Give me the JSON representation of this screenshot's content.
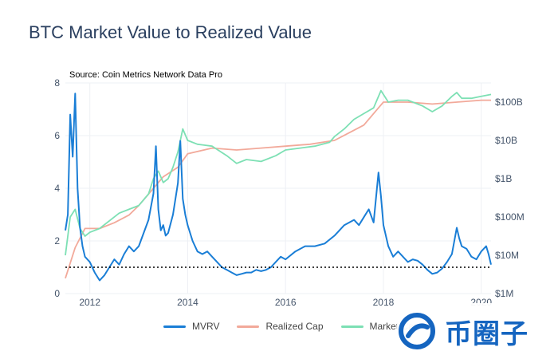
{
  "chart_data": {
    "type": "line",
    "title": "BTC Market Value to Realized Value",
    "subtitle": "Source: Coin Metrics Network Data Pro",
    "x_ticks": [
      "2012",
      "2014",
      "2016",
      "2018",
      "2020"
    ],
    "y_left_ticks": [
      "0",
      "2",
      "4",
      "6",
      "8"
    ],
    "y_left_range": [
      0,
      8
    ],
    "y_right_ticks": [
      "$1M",
      "$10M",
      "$100M",
      "$1B",
      "$10B",
      "$100B"
    ],
    "y_right_range_log10": [
      6,
      11.5
    ],
    "x_range": [
      2011.5,
      2020.2
    ],
    "reference_line": {
      "value": 1,
      "style": "dotted"
    },
    "legend": [
      "MVRV",
      "Realized Cap",
      "Market Cap"
    ],
    "colors": {
      "mvrv": "#1a7ed6",
      "realized": "#f2a99a",
      "market": "#7de0b4"
    },
    "series": [
      {
        "name": "MVRV",
        "axis": "left",
        "x": [
          2011.5,
          2011.55,
          2011.6,
          2011.65,
          2011.7,
          2011.75,
          2011.8,
          2011.85,
          2011.9,
          2012.0,
          2012.1,
          2012.2,
          2012.3,
          2012.4,
          2012.5,
          2012.6,
          2012.7,
          2012.8,
          2012.9,
          2013.0,
          2013.1,
          2013.2,
          2013.3,
          2013.35,
          2013.4,
          2013.45,
          2013.5,
          2013.55,
          2013.6,
          2013.7,
          2013.8,
          2013.85,
          2013.9,
          2013.95,
          2014.0,
          2014.1,
          2014.2,
          2014.3,
          2014.4,
          2014.5,
          2014.6,
          2014.7,
          2014.8,
          2014.9,
          2015.0,
          2015.1,
          2015.2,
          2015.3,
          2015.4,
          2015.5,
          2015.6,
          2015.7,
          2015.8,
          2015.9,
          2016.0,
          2016.2,
          2016.4,
          2016.6,
          2016.8,
          2017.0,
          2017.2,
          2017.4,
          2017.5,
          2017.6,
          2017.7,
          2017.8,
          2017.9,
          2017.95,
          2018.0,
          2018.1,
          2018.2,
          2018.3,
          2018.4,
          2018.5,
          2018.6,
          2018.7,
          2018.8,
          2018.9,
          2019.0,
          2019.1,
          2019.2,
          2019.3,
          2019.4,
          2019.5,
          2019.55,
          2019.6,
          2019.7,
          2019.8,
          2019.9,
          2020.0,
          2020.1,
          2020.15,
          2020.2
        ],
        "values": [
          2.4,
          3.0,
          6.8,
          5.2,
          7.6,
          4.0,
          2.5,
          1.8,
          1.4,
          1.2,
          0.8,
          0.5,
          0.7,
          1.0,
          1.3,
          1.1,
          1.5,
          1.8,
          1.6,
          1.8,
          2.3,
          2.8,
          3.8,
          5.6,
          3.2,
          2.4,
          2.6,
          2.2,
          2.3,
          3.0,
          4.2,
          5.8,
          3.6,
          3.0,
          2.6,
          2.0,
          1.6,
          1.5,
          1.6,
          1.4,
          1.2,
          1.0,
          0.9,
          0.8,
          0.7,
          0.75,
          0.8,
          0.8,
          0.9,
          0.85,
          0.9,
          1.0,
          1.2,
          1.4,
          1.3,
          1.6,
          1.8,
          1.8,
          1.9,
          2.2,
          2.6,
          2.8,
          2.6,
          2.9,
          3.2,
          2.7,
          4.6,
          3.7,
          2.6,
          1.8,
          1.4,
          1.6,
          1.4,
          1.2,
          1.3,
          1.25,
          1.1,
          0.9,
          0.75,
          0.8,
          0.95,
          1.2,
          1.5,
          2.5,
          2.1,
          1.8,
          1.7,
          1.4,
          1.3,
          1.6,
          1.8,
          1.5,
          1.1
        ]
      },
      {
        "name": "Realized Cap",
        "axis": "right",
        "x": [
          2011.5,
          2011.7,
          2011.9,
          2012.2,
          2012.5,
          2012.8,
          2013.0,
          2013.3,
          2013.5,
          2013.8,
          2014.0,
          2014.5,
          2015.0,
          2015.5,
          2016.0,
          2016.5,
          2017.0,
          2017.3,
          2017.6,
          2017.9,
          2018.0,
          2018.5,
          2019.0,
          2019.5,
          2020.0,
          2020.2
        ],
        "values": [
          6.4,
          7.2,
          7.7,
          7.7,
          7.85,
          8.05,
          8.3,
          8.75,
          9.05,
          9.3,
          9.65,
          9.8,
          9.75,
          9.8,
          9.85,
          9.9,
          10.0,
          10.2,
          10.4,
          10.85,
          11.0,
          11.0,
          10.95,
          11.0,
          11.05,
          11.05
        ]
      },
      {
        "name": "Market Cap",
        "axis": "right",
        "x": [
          2011.5,
          2011.6,
          2011.7,
          2011.8,
          2011.9,
          2012.0,
          2012.2,
          2012.4,
          2012.6,
          2012.8,
          2013.0,
          2013.2,
          2013.3,
          2013.4,
          2013.5,
          2013.6,
          2013.7,
          2013.8,
          2013.9,
          2014.0,
          2014.2,
          2014.5,
          2014.8,
          2015.0,
          2015.2,
          2015.5,
          2015.8,
          2016.0,
          2016.3,
          2016.6,
          2016.9,
          2017.0,
          2017.2,
          2017.4,
          2017.6,
          2017.8,
          2017.95,
          2018.0,
          2018.1,
          2018.3,
          2018.5,
          2018.8,
          2019.0,
          2019.2,
          2019.4,
          2019.5,
          2019.6,
          2019.8,
          2020.0,
          2020.2
        ],
        "values": [
          7.0,
          8.0,
          8.2,
          7.7,
          7.5,
          7.6,
          7.7,
          7.9,
          8.1,
          8.2,
          8.3,
          8.6,
          9.0,
          9.2,
          8.9,
          9.0,
          9.3,
          9.7,
          10.3,
          10.0,
          9.9,
          9.85,
          9.6,
          9.4,
          9.5,
          9.45,
          9.6,
          9.75,
          9.8,
          9.85,
          9.95,
          10.1,
          10.3,
          10.55,
          10.7,
          10.85,
          11.3,
          11.2,
          11.0,
          11.05,
          11.05,
          10.9,
          10.75,
          10.9,
          11.15,
          11.25,
          11.1,
          11.1,
          11.15,
          11.2
        ]
      }
    ]
  },
  "watermark_text": "币圈子"
}
